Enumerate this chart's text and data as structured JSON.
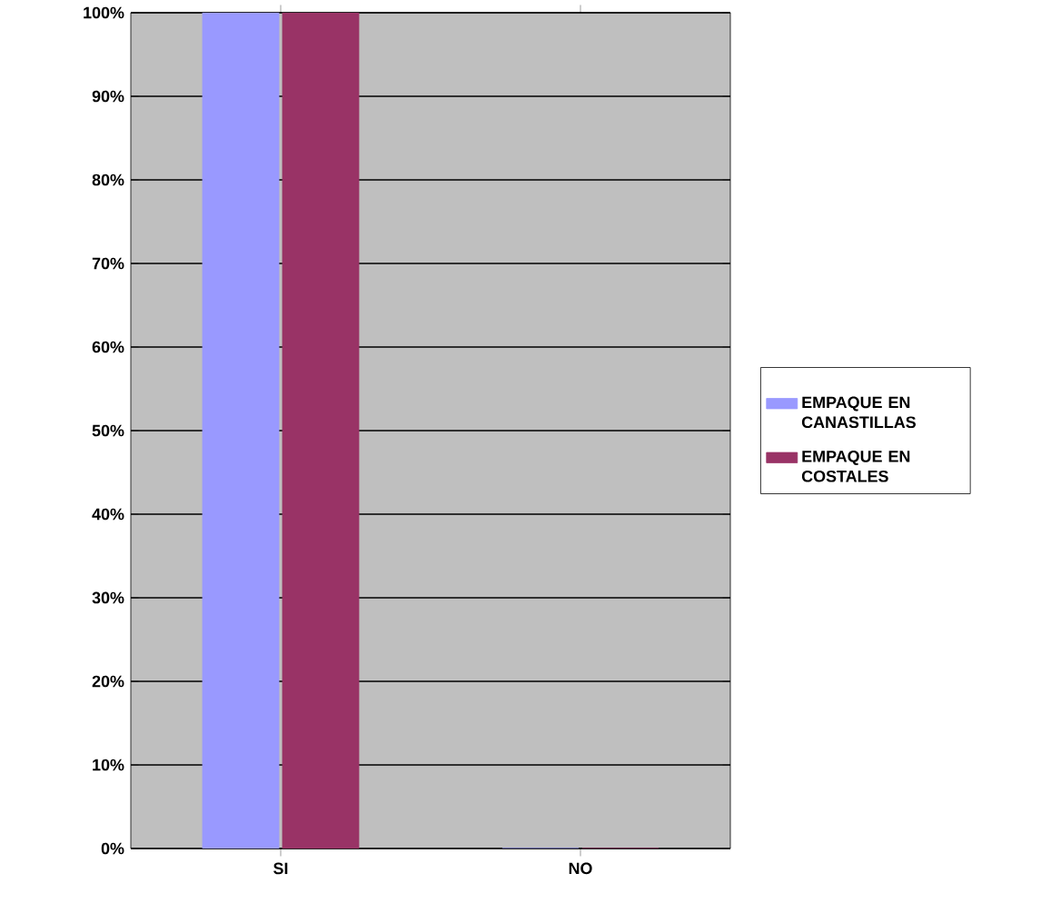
{
  "chart_data": {
    "type": "bar",
    "categories": [
      "SI",
      "NO"
    ],
    "series": [
      {
        "name": "EMPAQUE EN CANASTILLAS",
        "color": "#9999ff",
        "values": [
          100,
          0
        ]
      },
      {
        "name": "EMPAQUE EN COSTALES",
        "color": "#993366",
        "values": [
          100,
          0
        ]
      }
    ],
    "ylim": [
      0,
      100
    ],
    "yticks": [
      {
        "value": 0,
        "label": "0%"
      },
      {
        "value": 10,
        "label": "10%"
      },
      {
        "value": 20,
        "label": "20%"
      },
      {
        "value": 30,
        "label": "30%"
      },
      {
        "value": 40,
        "label": "40%"
      },
      {
        "value": 50,
        "label": "50%"
      },
      {
        "value": 60,
        "label": "60%"
      },
      {
        "value": 70,
        "label": "70%"
      },
      {
        "value": 80,
        "label": "80%"
      },
      {
        "value": 90,
        "label": "90%"
      },
      {
        "value": 100,
        "label": "100%"
      }
    ],
    "grid": "y",
    "legend": "right"
  }
}
